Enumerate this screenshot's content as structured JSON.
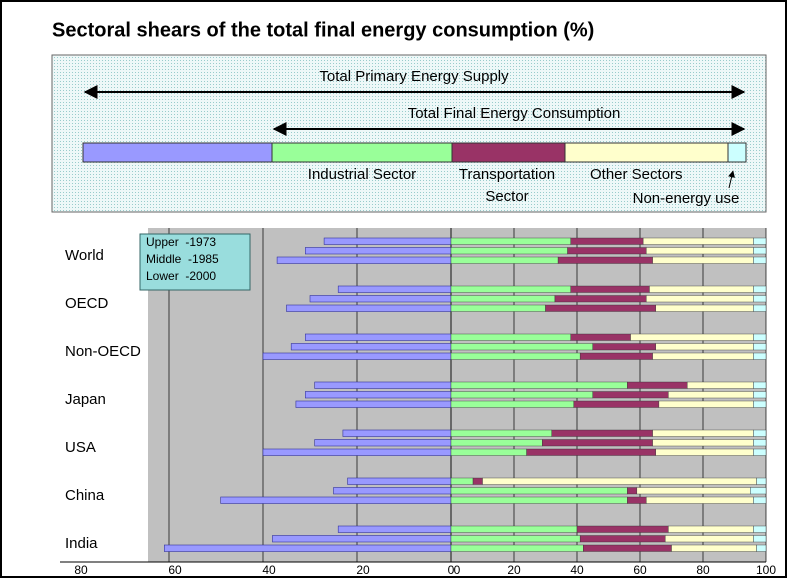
{
  "chart_data": {
    "type": "bar",
    "title": "Sectoral shears of the total final energy consumption (%)",
    "diagram": {
      "primary": "Total Primary Energy Supply",
      "final": "Total Final Energy Consumption"
    },
    "legend_labels": [
      "Upper  -1973",
      "Middle  -1985",
      "Lower  -2000"
    ],
    "categories": [
      "World",
      "OECD",
      "Non-OECD",
      "Japan",
      "USA",
      "China",
      "India"
    ],
    "series": [
      {
        "color": "#9999ff",
        "axis": "left",
        "values": [
          [
            27,
            31,
            37
          ],
          [
            24,
            30,
            35
          ],
          [
            31,
            34,
            40
          ],
          [
            29,
            31,
            33
          ],
          [
            23,
            29,
            40
          ],
          [
            22,
            25,
            49
          ],
          [
            24,
            38,
            61
          ]
        ]
      },
      {
        "name": "Industrial Sector",
        "color": "#99ff99",
        "values": [
          [
            38,
            37,
            34
          ],
          [
            38,
            33,
            30
          ],
          [
            38,
            45,
            41
          ],
          [
            56,
            45,
            39
          ],
          [
            32,
            29,
            24
          ],
          [
            7,
            56,
            56
          ],
          [
            40,
            41,
            42
          ]
        ]
      },
      {
        "name": "Transportation Sector",
        "color": "#993366",
        "values": [
          [
            23,
            25,
            30
          ],
          [
            25,
            29,
            35
          ],
          [
            19,
            20,
            23
          ],
          [
            19,
            24,
            27
          ],
          [
            32,
            35,
            41
          ],
          [
            3,
            3,
            6
          ],
          [
            29,
            27,
            28
          ]
        ]
      },
      {
        "name": "Other Sectors",
        "color": "#ffffcc",
        "values": [
          [
            35,
            34,
            32
          ],
          [
            33,
            34,
            31
          ],
          [
            39,
            31,
            32
          ],
          [
            21,
            27,
            30
          ],
          [
            32,
            32,
            31
          ],
          [
            87,
            36,
            34
          ],
          [
            27,
            28,
            27
          ]
        ]
      },
      {
        "name": "Non-energy use",
        "color": "#ccffff",
        "values": [
          [
            4,
            4,
            4
          ],
          [
            4,
            4,
            4
          ],
          [
            4,
            4,
            4
          ],
          [
            4,
            4,
            4
          ],
          [
            4,
            4,
            4
          ],
          [
            3,
            5,
            4
          ],
          [
            4,
            4,
            3
          ]
        ]
      }
    ],
    "xlim_left": [
      0,
      80
    ],
    "xticks_left": [
      80,
      60,
      40,
      20,
      0
    ],
    "xlim": [
      0,
      100
    ],
    "xticks": [
      0,
      20,
      40,
      60,
      80,
      100
    ],
    "grid": true
  }
}
